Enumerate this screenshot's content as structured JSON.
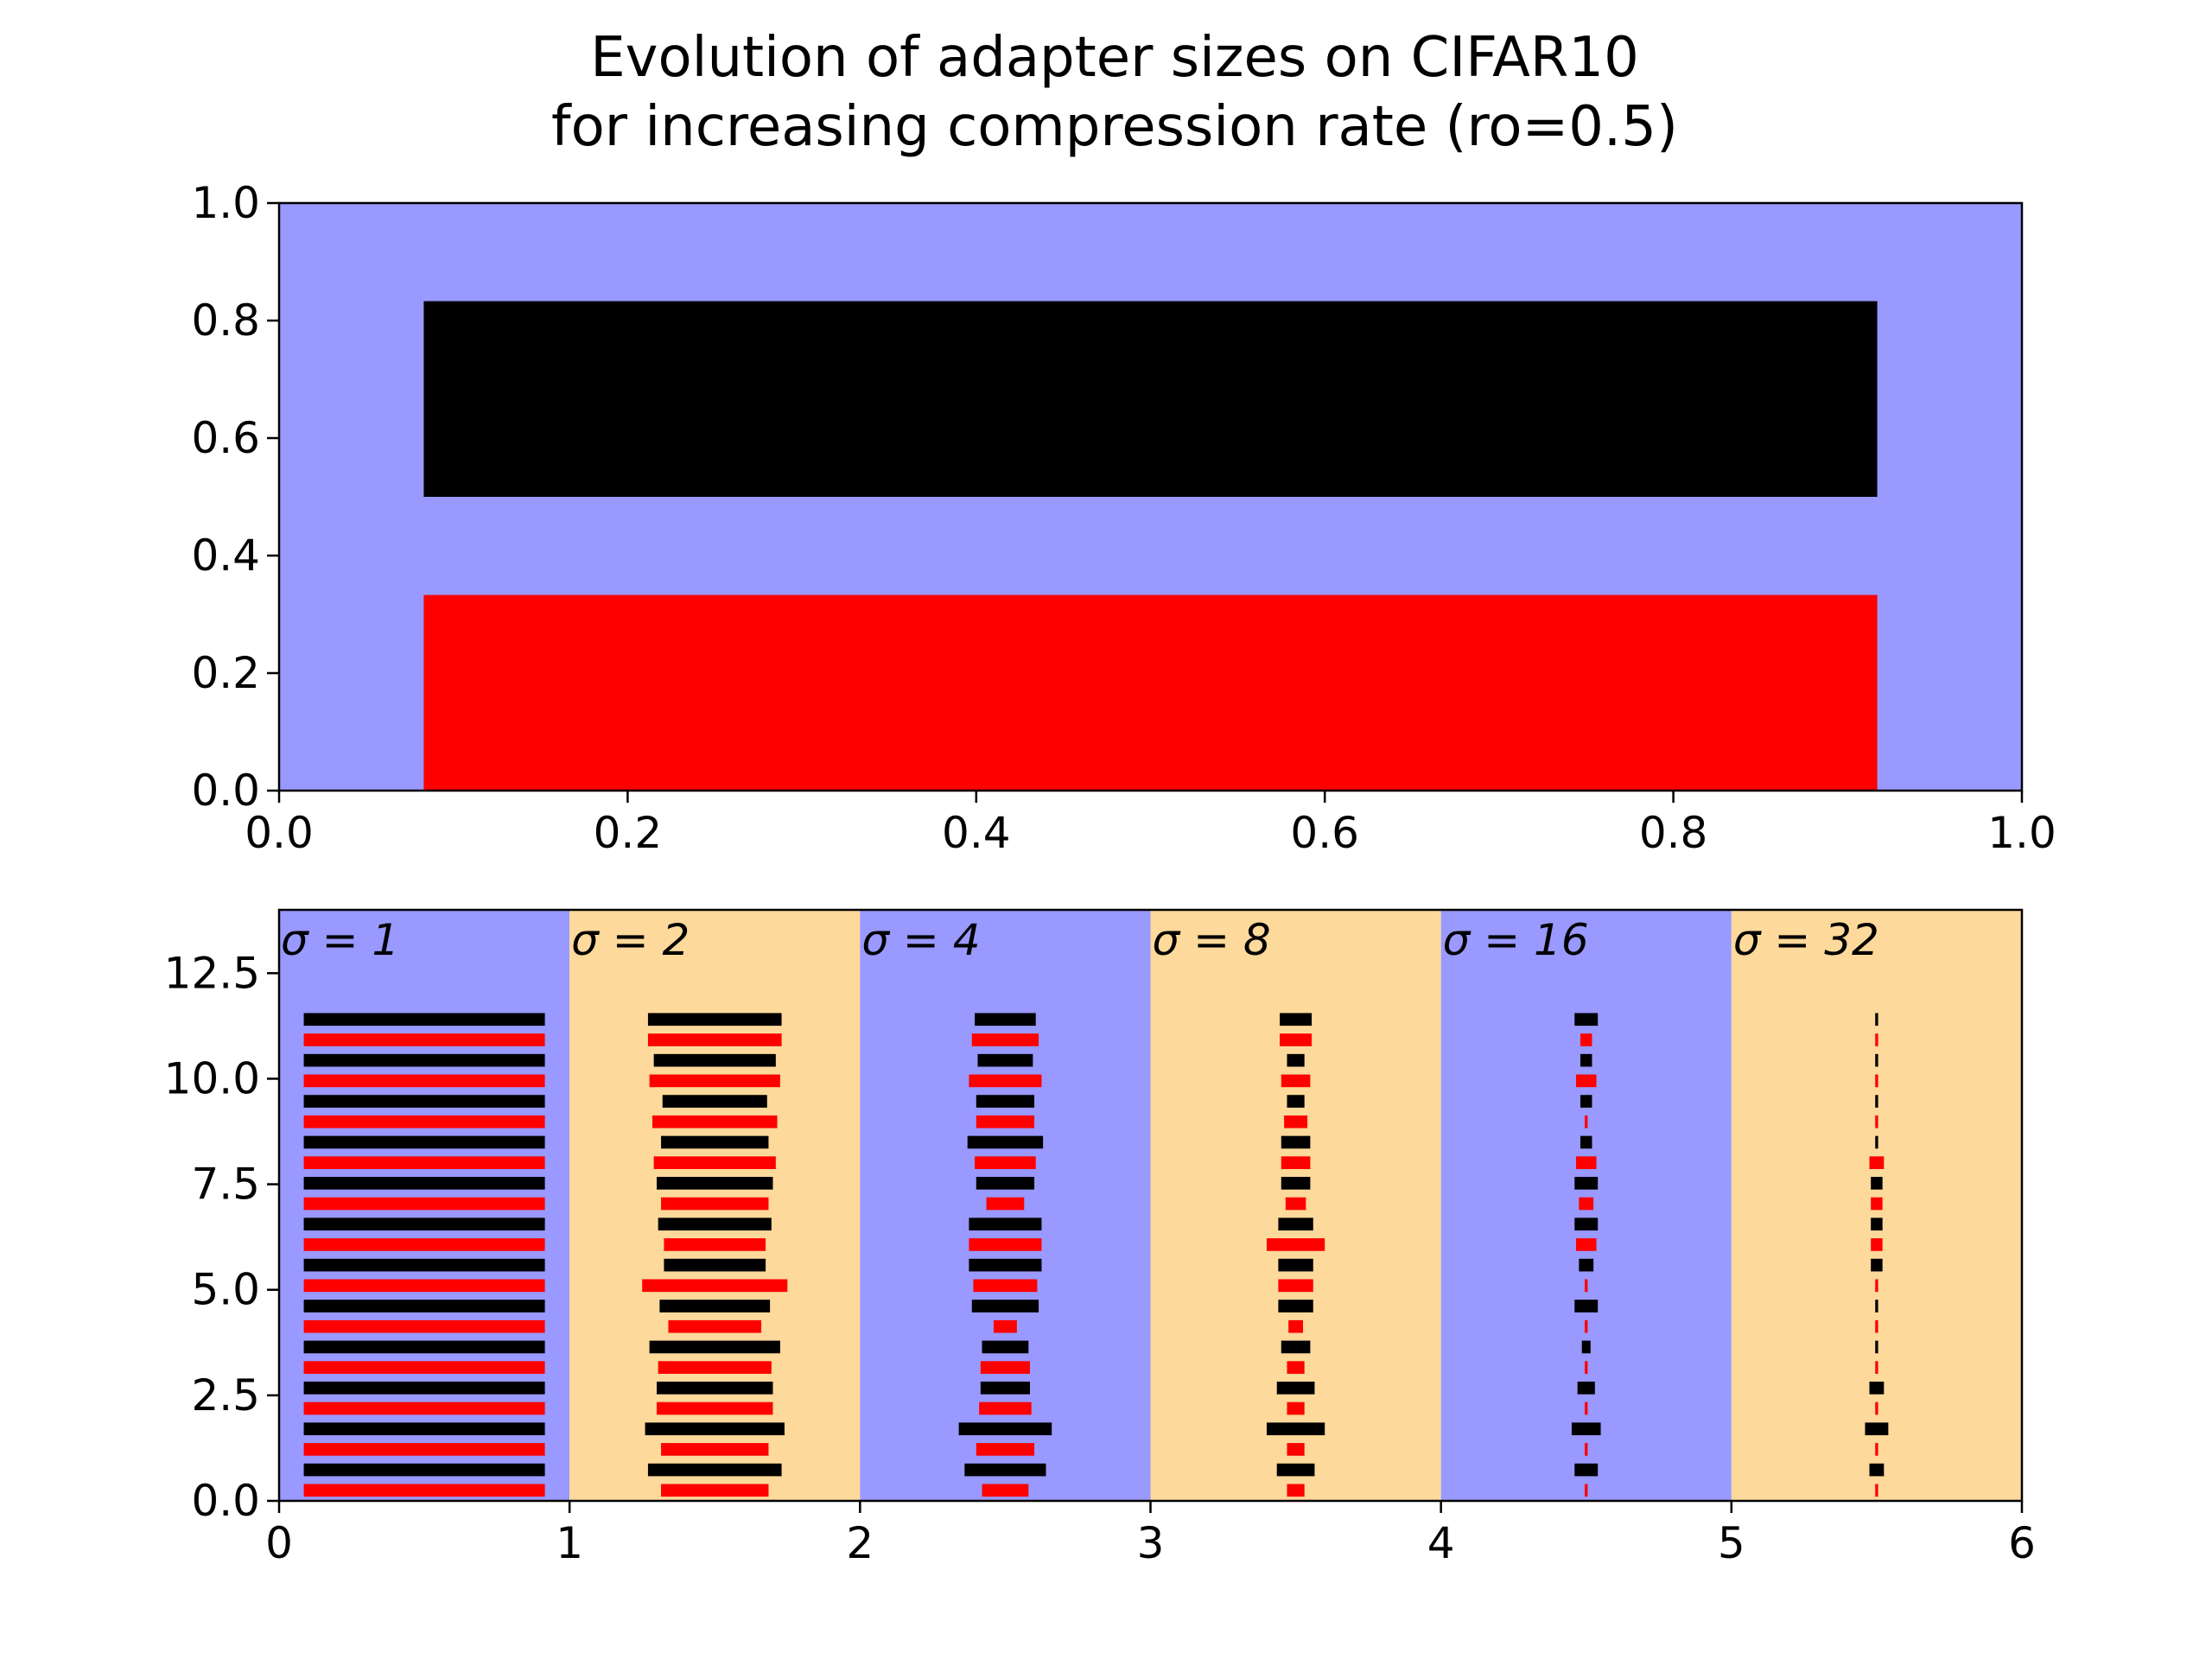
{
  "title_lines": [
    "Evolution of adapter sizes on CIFAR10",
    "for increasing compression rate (ro=0.5)"
  ],
  "colors": {
    "background_blue": "#9999ff",
    "background_orange": "#fdd99b",
    "black_bar": "#000000",
    "red_bar": "#ff0000"
  },
  "chart_data": [
    {
      "type": "bar",
      "description_source": "top panel",
      "xlim": [
        0,
        1
      ],
      "ylim": [
        0,
        1
      ],
      "xticks": [
        "0.0",
        "0.2",
        "0.4",
        "0.6",
        "0.8",
        "1.0"
      ],
      "yticks": [
        "0.0",
        "0.2",
        "0.4",
        "0.6",
        "0.8",
        "1.0"
      ],
      "background": "background_blue",
      "bars": [
        {
          "color": "black_bar",
          "x0": 0.083,
          "x1": 0.917,
          "y0": 0.5,
          "y1": 0.833
        },
        {
          "color": "red_bar",
          "x0": 0.083,
          "x1": 0.917,
          "y0": 0.0,
          "y1": 0.333
        }
      ]
    },
    {
      "type": "bar",
      "xlim": [
        0,
        6
      ],
      "ylim": [
        0,
        14
      ],
      "xticks": [
        "0",
        "1",
        "2",
        "3",
        "4",
        "5",
        "6"
      ],
      "yticks": [
        "0.0",
        "2.5",
        "5.0",
        "7.5",
        "10.0",
        "12.5"
      ],
      "bar_height": 0.3,
      "row_count": 24,
      "row_color_pattern": "even rows red, odd rows black, starting from y=0",
      "groups": [
        {
          "label": "σ = 1",
          "center": 0.5,
          "background": "background_blue",
          "widths": [
            0.83,
            0.83,
            0.83,
            0.83,
            0.83,
            0.83,
            0.83,
            0.83,
            0.83,
            0.83,
            0.83,
            0.83,
            0.83,
            0.83,
            0.83,
            0.83,
            0.83,
            0.83,
            0.83,
            0.83,
            0.83,
            0.83,
            0.83,
            0.83
          ]
        },
        {
          "label": "σ = 2",
          "center": 1.5,
          "background": "background_orange",
          "widths": [
            0.37,
            0.46,
            0.37,
            0.48,
            0.4,
            0.4,
            0.39,
            0.45,
            0.32,
            0.38,
            0.5,
            0.35,
            0.35,
            0.39,
            0.37,
            0.4,
            0.42,
            0.37,
            0.43,
            0.36,
            0.45,
            0.42,
            0.46,
            0.46
          ]
        },
        {
          "label": "σ = 4",
          "center": 2.5,
          "background": "background_orange_none",
          "widths": [
            0.16,
            0.28,
            0.2,
            0.32,
            0.18,
            0.17,
            0.17,
            0.16,
            0.08,
            0.23,
            0.22,
            0.25,
            0.25,
            0.25,
            0.13,
            0.2,
            0.21,
            0.26,
            0.2,
            0.2,
            0.25,
            0.19,
            0.23,
            0.21
          ]
        },
        {
          "label": "σ = 8",
          "center": 3.5,
          "background": "background_orange",
          "widths": [
            0.06,
            0.13,
            0.06,
            0.2,
            0.06,
            0.13,
            0.06,
            0.1,
            0.05,
            0.12,
            0.12,
            0.12,
            0.2,
            0.12,
            0.07,
            0.1,
            0.1,
            0.1,
            0.08,
            0.06,
            0.1,
            0.06,
            0.11,
            0.11
          ]
        },
        {
          "label": "σ = 16",
          "center": 4.5,
          "background": "background_blue",
          "widths": [
            0.01,
            0.08,
            0.01,
            0.1,
            0.01,
            0.06,
            0.01,
            0.03,
            0.01,
            0.08,
            0.01,
            0.05,
            0.07,
            0.08,
            0.05,
            0.08,
            0.07,
            0.04,
            0.01,
            0.04,
            0.07,
            0.04,
            0.04,
            0.08
          ]
        },
        {
          "label": "σ = 32",
          "center": 5.5,
          "background": "background_orange",
          "widths": [
            0.01,
            0.05,
            0.01,
            0.08,
            0.01,
            0.05,
            0.01,
            0.01,
            0.01,
            0.01,
            0.01,
            0.04,
            0.04,
            0.04,
            0.04,
            0.04,
            0.05,
            0.01,
            0.01,
            0.01,
            0.01,
            0.01,
            0.01,
            0.01
          ]
        }
      ]
    }
  ]
}
